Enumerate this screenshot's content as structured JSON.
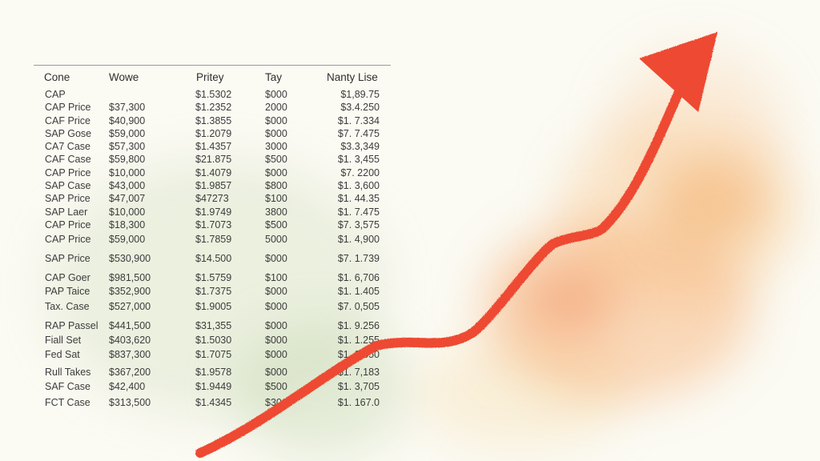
{
  "table": {
    "headers": [
      "Cone",
      "Wowe",
      "Pritey",
      "Tay",
      "Nanty Lise"
    ],
    "rows": [
      [
        "CAP",
        "",
        "$1.5302",
        "$000",
        "$1,89.75"
      ],
      [
        "CAP Price",
        "$37,300",
        "$1.2352",
        "2000",
        "$3.4.250"
      ],
      [
        "CAF Price",
        "$40,900",
        "$1.3855",
        "$000",
        "$1. 7.334"
      ],
      [
        "SAP Gose",
        "$59,000",
        "$1.2079",
        "$000",
        "$7. 7.475"
      ],
      [
        "CA7 Case",
        "$57,300",
        "$1.4357",
        "3000",
        "$3.3,349"
      ],
      [
        "CAF Case",
        "$59,800",
        "$21.875",
        "$500",
        "$1. 3,455"
      ],
      [
        "CAP Price",
        "$10,000",
        "$1.4079",
        "$000",
        "$7. 2200"
      ],
      [
        "SAP Case",
        "$43,000",
        "$1.9857",
        "$800",
        "$1. 3,600"
      ],
      [
        "SAP Price",
        "$47,007",
        "$47273",
        "$100",
        "$1. 44.35"
      ],
      [
        "SAP Laer",
        "$10,000",
        "$1.9749",
        "3800",
        "$1. 7.475"
      ],
      [
        "CAP Price",
        "$18,300",
        "$1.7073",
        "$500",
        "$7. 3,575"
      ],
      [
        "CAP Price",
        "$59,000",
        "$1.7859",
        "5000",
        "$1. 4,900"
      ],
      [
        "SAP Price",
        "$530,900",
        "$14.500",
        "$000",
        "$7. 1.739"
      ],
      [
        "CAP Goer",
        "$981,500",
        "$1.5759",
        "$100",
        "$1. 6,706"
      ],
      [
        "PAP Taice",
        "$352,900",
        "$1.7375",
        "$000",
        "$1. 1.405"
      ],
      [
        "Tax. Case",
        "$527,000",
        "$1.9005",
        "$000",
        "$7. 0,505"
      ],
      [
        "RAP Passel",
        "$441,500",
        "$31,355",
        "$000",
        "$1. 9.256"
      ],
      [
        "Fiall Set",
        "$403,620",
        "$1.5030",
        "$000",
        "$1. 1.255"
      ],
      [
        "Fed Sat",
        "$837,300",
        "$1.7075",
        "$000",
        "$1. 2,650"
      ],
      [
        "Rull Takes",
        "$367,200",
        "$1.9578",
        "$000",
        "$1. 7,183"
      ],
      [
        "SAF Case",
        "$42,400",
        "$1.9449",
        "$500",
        "$1. 3,705"
      ],
      [
        "FCT Case",
        "$313,500",
        "$1.4345",
        "$301",
        "$1. 167.0"
      ]
    ]
  },
  "arrow": {
    "color": "#ee4a30",
    "icon": "trend-up-arrow-icon"
  }
}
